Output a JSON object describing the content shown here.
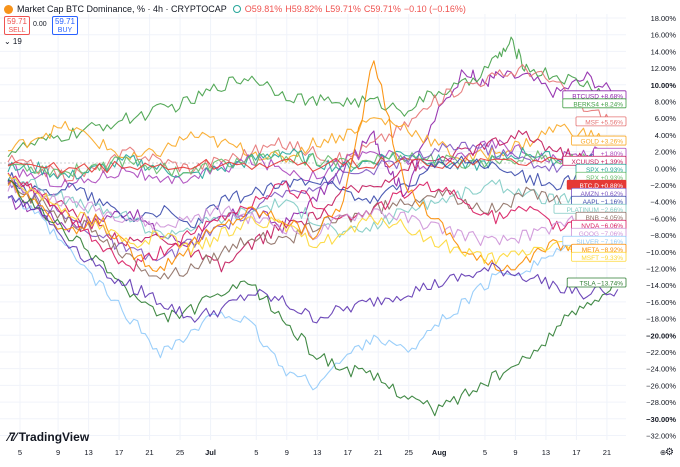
{
  "header": {
    "title": "Market Cap BTC Dominance, % · 4h · CRYPTOCAP",
    "ohlc": [
      "O59.81%",
      "H59.82%",
      "L59.71%",
      "C59.71%",
      "−0.10 (−0.16%)"
    ],
    "sell_price": "59.71",
    "sell_label": "SELL",
    "spread": "0.00",
    "buy_price": "59.71",
    "buy_label": "BUY",
    "study_toggle": "⌄ 19"
  },
  "branding": {
    "logo_text": "TradingView"
  },
  "icons": {
    "symbol_icon": "bitcoin-icon",
    "settings_icon": "gear-icon",
    "logo_icon": "tradingview-logo-icon"
  },
  "chart_data": {
    "type": "line",
    "y_axis": {
      "unit": "%",
      "range": [
        -32,
        18
      ],
      "ticks": [
        18,
        16,
        14,
        12,
        10,
        8,
        6,
        4,
        2,
        0,
        -2,
        -4,
        -6,
        -8,
        -10,
        -12,
        -14,
        -16,
        -18,
        -20,
        -22,
        -24,
        -26,
        -28,
        -30,
        -32
      ],
      "tick_labels": [
        "18.00%",
        "16.00%",
        "14.00%",
        "12.00%",
        "10.00%",
        "8.00%",
        "6.00%",
        "4.00%",
        "2.00%",
        "0.00%",
        "−2.00%",
        "−4.00%",
        "−6.00%",
        "−8.00%",
        "−10.00%",
        "−12.00%",
        "−14.00%",
        "−16.00%",
        "−18.00%",
        "−20.00%",
        "−22.00%",
        "−24.00%",
        "−26.00%",
        "−28.00%",
        "−30.00%",
        "−32.00%"
      ],
      "bold_labels": [
        "10.00%",
        "−20.00%",
        "−30.00%"
      ]
    },
    "x_axis": {
      "range": [
        0,
        90
      ],
      "ticks": [
        0,
        5,
        9,
        13,
        17,
        21,
        25,
        31,
        35,
        39,
        43,
        47,
        51,
        55,
        61,
        65,
        69,
        73,
        77,
        81
      ],
      "tick_labels": [
        "5",
        "9",
        "13",
        "17",
        "21",
        "25",
        "Jul",
        "5",
        "9",
        "13",
        "17",
        "21",
        "25",
        "Aug",
        "5",
        "9",
        "13",
        "17",
        "21",
        "⊕"
      ],
      "bold_labels": [
        "Jul",
        "Aug"
      ]
    },
    "grid": true,
    "series": [
      {
        "name": "BTCUSD",
        "label": "+8.68%",
        "color": "#8e24aa",
        "x": [
          0,
          4,
          8,
          12,
          16,
          20,
          24,
          28,
          32,
          36,
          40,
          44,
          48,
          50,
          52,
          56,
          60,
          62,
          64,
          68,
          72,
          76,
          80
        ],
        "y": [
          -4,
          -5,
          -7,
          -6,
          -5,
          -8,
          -9,
          -6,
          -5,
          -7,
          -4,
          0,
          4,
          0,
          -3,
          6,
          12,
          10,
          11,
          11,
          9,
          11,
          8.68
        ]
      },
      {
        "name": "BERKS4",
        "label": "+8.24%",
        "color": "#43a047",
        "x": [
          0,
          4,
          8,
          12,
          16,
          20,
          24,
          28,
          32,
          36,
          40,
          44,
          48,
          52,
          56,
          60,
          64,
          66,
          68,
          72,
          76,
          80
        ],
        "y": [
          2,
          3,
          4,
          5,
          6,
          7,
          8,
          10,
          11,
          9,
          8,
          8,
          8,
          7,
          9,
          10,
          13,
          15,
          12,
          11,
          10,
          8.24
        ]
      },
      {
        "name": "MSF",
        "label": "+5.56%",
        "color": "#e57373",
        "x": [
          0,
          4,
          8,
          12,
          16,
          20,
          24,
          28,
          32,
          36,
          40,
          44,
          48,
          52,
          56,
          60,
          64,
          68,
          72,
          76,
          80
        ],
        "y": [
          1,
          0,
          -1,
          0,
          2,
          1,
          0,
          1,
          2,
          3,
          2,
          1,
          3,
          5,
          8,
          10,
          11,
          12,
          10,
          7,
          5.56
        ]
      },
      {
        "name": "GOLD",
        "label": "+3.26%",
        "color": "#f9a825",
        "x": [
          0,
          4,
          8,
          12,
          16,
          20,
          24,
          28,
          32,
          36,
          40,
          44,
          48,
          52,
          56,
          60,
          64,
          68,
          72,
          76,
          80
        ],
        "y": [
          2,
          4,
          5,
          3,
          1,
          2,
          4,
          3,
          2,
          1,
          3,
          4,
          6,
          5,
          3,
          1,
          2,
          3,
          5,
          4,
          3.26
        ]
      },
      {
        "name": "",
        "label": "+1.80%",
        "color": "#ab47bc",
        "x": [
          0,
          4,
          8,
          12,
          16,
          20,
          24,
          28,
          32,
          36,
          40,
          44,
          48,
          52,
          56,
          60,
          64,
          68,
          72,
          76,
          80
        ],
        "y": [
          0,
          -1,
          -2,
          -1,
          0,
          -2,
          -1,
          0,
          1,
          0,
          -1,
          1,
          2,
          1,
          0,
          2,
          3,
          2,
          1,
          2,
          1.8
        ]
      },
      {
        "name": "XCUUSD",
        "label": "+1.39%",
        "color": "#c2185b",
        "x": [
          0,
          4,
          8,
          12,
          16,
          20,
          24,
          28,
          32,
          36,
          40,
          44,
          48,
          52,
          56,
          60,
          64,
          68,
          72,
          76,
          80
        ],
        "y": [
          -1,
          -3,
          -5,
          -7,
          -9,
          -8,
          -10,
          -12,
          -9,
          -7,
          -6,
          -3,
          -2,
          0,
          1,
          2,
          3,
          4,
          2,
          1,
          1.39
        ]
      },
      {
        "name": "SPX",
        "label": "+0.93%",
        "color": "#26a69a",
        "x": [
          0,
          4,
          8,
          12,
          16,
          20,
          24,
          28,
          32,
          36,
          40,
          44,
          48,
          52,
          56,
          60,
          64,
          68,
          72,
          76,
          80
        ],
        "y": [
          0,
          0,
          -1,
          0,
          1,
          0,
          -1,
          0,
          1,
          2,
          1,
          0,
          1,
          2,
          1,
          0,
          1,
          2,
          1,
          1,
          0.93
        ]
      },
      {
        "name": "SPX",
        "label": "+0.93%",
        "color": "#66bb6a",
        "x": [
          0,
          4,
          8,
          12,
          16,
          20,
          24,
          28,
          32,
          36,
          40,
          44,
          48,
          52,
          56,
          60,
          64,
          68,
          72,
          76,
          80
        ],
        "y": [
          0.5,
          0,
          -0.5,
          0.5,
          1,
          0,
          -0.5,
          0.5,
          1,
          1.5,
          1,
          0.5,
          1,
          1.5,
          1,
          0.5,
          1,
          1.5,
          1,
          1,
          0.93
        ]
      },
      {
        "name": "BTC.D",
        "label": "+0.88%",
        "color": "#e53935",
        "x": [
          0,
          8,
          16,
          24,
          32,
          40,
          48,
          56,
          64,
          72,
          80
        ],
        "y": [
          0,
          0.2,
          0.1,
          0.3,
          0.5,
          0.4,
          0.6,
          0.7,
          0.8,
          0.9,
          0.88
        ]
      },
      {
        "name": "AMZN",
        "label": "+0.62%",
        "color": "#7e57c2",
        "x": [
          0,
          4,
          8,
          12,
          16,
          20,
          24,
          28,
          32,
          36,
          40,
          44,
          48,
          52,
          56,
          60,
          64,
          68,
          72,
          76,
          80
        ],
        "y": [
          -2,
          -4,
          -6,
          -8,
          -10,
          -11,
          -9,
          -7,
          -5,
          -3,
          -2,
          -1,
          0,
          1,
          2,
          3,
          2,
          1,
          0,
          1,
          0.62
        ]
      },
      {
        "name": "AAPL",
        "label": "−1.16%",
        "color": "#3949ab",
        "x": [
          0,
          4,
          8,
          12,
          16,
          20,
          24,
          28,
          32,
          36,
          40,
          44,
          48,
          52,
          56,
          60,
          64,
          68,
          72,
          76,
          80
        ],
        "y": [
          -1,
          -3,
          -2,
          -4,
          -6,
          -5,
          -7,
          -4,
          -3,
          -2,
          -1,
          -3,
          -4,
          -2,
          0,
          1,
          0,
          -1,
          -2,
          -1,
          -1.16
        ]
      },
      {
        "name": "PLATINUM",
        "label": "−2.66%",
        "color": "#80cbc4",
        "x": [
          0,
          4,
          8,
          12,
          16,
          20,
          24,
          28,
          32,
          36,
          40,
          44,
          48,
          52,
          56,
          60,
          64,
          68,
          72,
          76,
          80
        ],
        "y": [
          -1,
          -2,
          -4,
          -5,
          -6,
          -8,
          -7,
          -6,
          -5,
          -4,
          -6,
          -8,
          -7,
          -5,
          -4,
          -3,
          -2,
          -3,
          -4,
          -3,
          -2.66
        ]
      },
      {
        "name": "BNB",
        "label": "−4.05%",
        "color": "#8d6e63",
        "x": [
          0,
          4,
          8,
          12,
          16,
          20,
          24,
          28,
          32,
          36,
          40,
          44,
          48,
          52,
          56,
          60,
          64,
          68,
          72,
          76,
          80
        ],
        "y": [
          -2,
          -4,
          -6,
          -8,
          -11,
          -13,
          -12,
          -10,
          -8,
          -9,
          -7,
          -6,
          -5,
          -4,
          -3,
          -4,
          -5,
          -3,
          -4,
          -5,
          -4.05
        ]
      },
      {
        "name": "NVDA",
        "label": "−6.06%",
        "color": "#d81b60",
        "x": [
          0,
          4,
          8,
          12,
          16,
          20,
          24,
          28,
          32,
          36,
          40,
          44,
          48,
          52,
          56,
          60,
          64,
          68,
          72,
          76,
          80
        ],
        "y": [
          -1,
          -3,
          -6,
          -9,
          -12,
          -10,
          -8,
          -6,
          -4,
          -2,
          -4,
          -6,
          -5,
          -3,
          -2,
          -4,
          -6,
          -5,
          -7,
          -6,
          -6.06
        ]
      },
      {
        "name": "GOOG",
        "label": "−7.06%",
        "color": "#ce93d8",
        "x": [
          0,
          4,
          8,
          12,
          16,
          20,
          24,
          28,
          32,
          36,
          40,
          44,
          48,
          52,
          56,
          60,
          64,
          68,
          72,
          76,
          80
        ],
        "y": [
          -2,
          -3,
          -4,
          -5,
          -6,
          -7,
          -6,
          -5,
          -6,
          -7,
          -8,
          -6,
          -5,
          -6,
          -7,
          -8,
          -9,
          -8,
          -7,
          -6,
          -7.06
        ]
      },
      {
        "name": "SILVER",
        "label": "−7.16%",
        "color": "#90caf9",
        "x": [
          0,
          4,
          8,
          12,
          16,
          20,
          24,
          28,
          32,
          36,
          40,
          44,
          48,
          52,
          56,
          60,
          64,
          68,
          72,
          76,
          80
        ],
        "y": [
          -3,
          -6,
          -10,
          -14,
          -18,
          -22,
          -20,
          -17,
          -19,
          -24,
          -26,
          -23,
          -20,
          -22,
          -19,
          -16,
          -13,
          -12,
          -10,
          -8,
          -7.16
        ]
      },
      {
        "name": "META",
        "label": "−8.92%",
        "color": "#fb8c00",
        "x": [
          0,
          4,
          8,
          12,
          16,
          20,
          24,
          28,
          32,
          36,
          40,
          44,
          48,
          52,
          56,
          60,
          64,
          68,
          72,
          76,
          80
        ],
        "y": [
          -2,
          -4,
          -8,
          -6,
          -10,
          -12,
          -9,
          -7,
          -5,
          -6,
          -8,
          -4,
          13,
          -2,
          -6,
          -10,
          -12,
          -11,
          -9,
          -10,
          -8.92
        ]
      },
      {
        "name": "MSFT",
        "label": "−9.33%",
        "color": "#fdd835",
        "x": [
          0,
          4,
          8,
          12,
          16,
          20,
          24,
          28,
          32,
          36,
          40,
          44,
          48,
          52,
          56,
          60,
          64,
          68,
          72,
          76,
          80
        ],
        "y": [
          -1,
          -3,
          -5,
          -7,
          -9,
          -8,
          -10,
          -8,
          -6,
          -7,
          -9,
          -8,
          -6,
          -7,
          -9,
          -10,
          -11,
          -10,
          -9,
          -10,
          -9.33
        ]
      },
      {
        "name": "TSLA",
        "label": "−13.74%",
        "color": "#2e7d32",
        "x": [
          0,
          4,
          8,
          12,
          16,
          20,
          24,
          28,
          32,
          36,
          40,
          44,
          48,
          52,
          56,
          60,
          64,
          68,
          72,
          76,
          80
        ],
        "y": [
          -2,
          -5,
          -8,
          -11,
          -15,
          -18,
          -17,
          -15,
          -14,
          -18,
          -22,
          -24,
          -25,
          -27,
          -29,
          -27,
          -25,
          -23,
          -19,
          -16,
          -13.74
        ]
      },
      {
        "name": "",
        "label": "",
        "color": "#5e35b1",
        "x": [
          0,
          4,
          8,
          12,
          16,
          20,
          24,
          28,
          32,
          36,
          40,
          44,
          48,
          52,
          56,
          60,
          64,
          68,
          72,
          76,
          80
        ],
        "y": [
          -3,
          -5,
          -9,
          -12,
          -14,
          -16,
          -18,
          -17,
          -15,
          -16,
          -18,
          -17,
          -16,
          -15,
          -14,
          -13,
          -12,
          -13,
          -14,
          -15,
          -14.5
        ]
      }
    ],
    "legend_placement": "right edge (price-scale labels)"
  }
}
